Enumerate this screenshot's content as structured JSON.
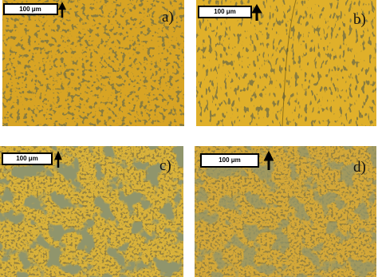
{
  "panels": [
    {
      "label": "a)",
      "scale": "100 μm"
    },
    {
      "label": "b)",
      "scale": "100 μm"
    },
    {
      "label": "c)",
      "scale": "100 μm"
    },
    {
      "label": "d)",
      "scale": "100 μm"
    }
  ]
}
